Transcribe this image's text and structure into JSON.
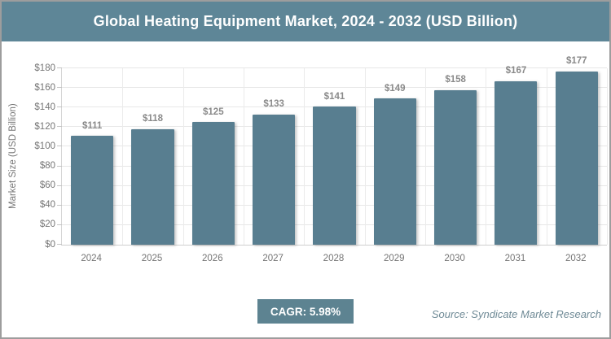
{
  "header": {
    "title": "Global Heating Equipment Market, 2024 - 2032 (USD Billion)"
  },
  "chart_data": {
    "type": "bar",
    "title": "Global Heating Equipment Market, 2024 - 2032 (USD Billion)",
    "categories": [
      "2024",
      "2025",
      "2026",
      "2027",
      "2028",
      "2029",
      "2030",
      "2031",
      "2032"
    ],
    "values": [
      111,
      118,
      125,
      133,
      141,
      149,
      158,
      167,
      177
    ],
    "value_labels": [
      "$111",
      "$118",
      "$125",
      "$133",
      "$141",
      "$149",
      "$158",
      "$167",
      "$177"
    ],
    "xlabel": "",
    "ylabel": "Market Size (USD Billion)",
    "ylim": [
      0,
      180
    ],
    "ytick_step": 20,
    "ytick_labels": [
      "$0",
      "$20",
      "$40",
      "$60",
      "$80",
      "$100",
      "$120",
      "$140",
      "$160",
      "$180"
    ],
    "grid": true,
    "legend": false
  },
  "footer": {
    "cagr_label": "CAGR: 5.98%",
    "source": "Source: Syndicate Market Research"
  },
  "colors": {
    "header_bg": "#5e8697",
    "bar": "#587e90",
    "badge_bg": "#5d8391",
    "grid": "#e7e7e7",
    "axis": "#d6d6d6",
    "tick_text": "#757575",
    "value_label_text": "#8a8a8a",
    "source_text": "#6f8a96",
    "page_border": "#9d9d9d"
  }
}
